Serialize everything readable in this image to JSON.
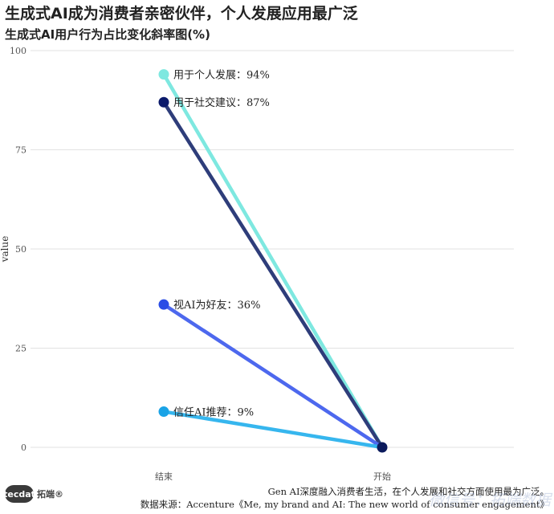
{
  "header": {
    "title": "生成式AI成为消费者亲密伙伴，个人发展应用最广泛",
    "subtitle": "生成式AI用户行为占比变化斜率图(%)"
  },
  "chart_data": {
    "type": "line",
    "subtype": "slope",
    "categories": [
      "结束",
      "开始"
    ],
    "ylabel": "value",
    "xlabel": "",
    "ylim": [
      0,
      100
    ],
    "yticks": [
      0,
      25,
      50,
      75,
      100
    ],
    "grid": true,
    "series": [
      {
        "label": "用于个人发展：94%",
        "values": [
          94,
          0
        ],
        "color": "#7ee8e0"
      },
      {
        "label": "用于社交建议：87%",
        "values": [
          87,
          0
        ],
        "color": "#2e3d7a",
        "dot_color": "#0b1a6b"
      },
      {
        "label": "视AI为好友：36%",
        "values": [
          36,
          0
        ],
        "color": "#4d68ee",
        "dot_color": "#2a4de6"
      },
      {
        "label": "信任AI推荐：9%",
        "values": [
          9,
          0
        ],
        "color": "#36b6ee",
        "dot_color": "#1aa3e6"
      }
    ],
    "end_dot_color": "#0b1a5c"
  },
  "footer": {
    "caption": "Gen AI深度融入消费者生活，在个人发展和社交方面使用最为广泛。",
    "source": "数据来源：Accenture《Me, my brand and AI: The new world of consumer engagement》",
    "logo_mark": "tecdat",
    "logo_text": "拓端®",
    "watermark": "微信号：拓端数据"
  }
}
